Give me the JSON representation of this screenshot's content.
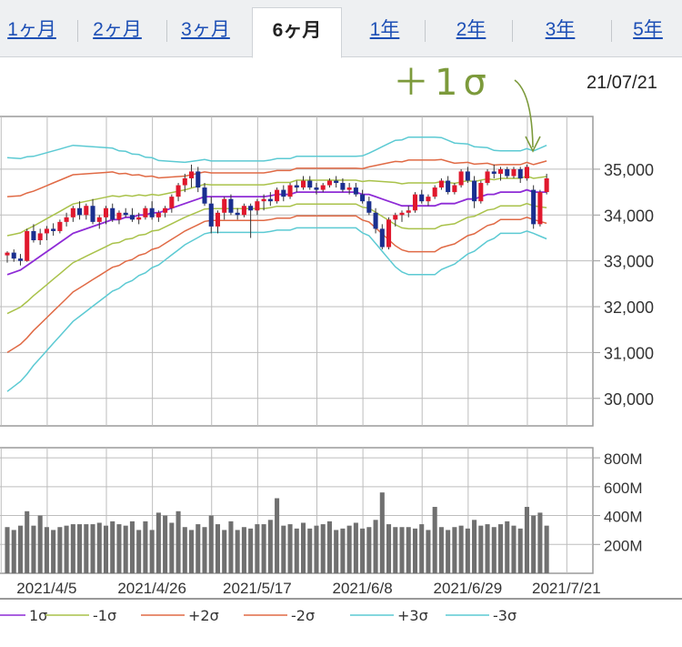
{
  "tabs": [
    {
      "label": "1ヶ月",
      "active": false
    },
    {
      "label": "2ヶ月",
      "active": false
    },
    {
      "label": "3ヶ月",
      "active": false
    },
    {
      "label": "6ヶ月",
      "active": true
    },
    {
      "label": "1年",
      "active": false
    },
    {
      "label": "2年",
      "active": false
    },
    {
      "label": "3年",
      "active": false
    },
    {
      "label": "5年",
      "active": false
    }
  ],
  "date_label": "21/07/21",
  "annotation": "＋1σ",
  "colors": {
    "up": "#e0182d",
    "down": "#1a2f8f",
    "mid": "#8e2bd6",
    "s1": "#a9c24a",
    "s2": "#e06a45",
    "s3": "#5ccad3",
    "volume": "#707070",
    "arrow": "#7c9a3b"
  },
  "chart_data": {
    "type": "candlestick",
    "price": {
      "y_ticks": [
        "35,000",
        "34,000",
        "33,000",
        "32,000",
        "31,000",
        "30,000"
      ],
      "y_tick_values": [
        35000,
        34000,
        33000,
        32000,
        31000,
        30000
      ],
      "ylim": [
        29400,
        36150
      ],
      "candles": [
        [
          33120,
          33210,
          32960,
          33180
        ],
        [
          33180,
          33250,
          32980,
          33050
        ],
        [
          33050,
          33150,
          32900,
          33000
        ],
        [
          33000,
          33700,
          32980,
          33650
        ],
        [
          33650,
          33800,
          33400,
          33450
        ],
        [
          33450,
          33700,
          33350,
          33600
        ],
        [
          33600,
          33760,
          33450,
          33700
        ],
        [
          33700,
          33820,
          33550,
          33650
        ],
        [
          33650,
          33900,
          33600,
          33850
        ],
        [
          33850,
          34050,
          33750,
          33950
        ],
        [
          33950,
          34200,
          33850,
          34150
        ],
        [
          34150,
          34300,
          33900,
          34000
        ],
        [
          34000,
          34250,
          33900,
          34200
        ],
        [
          34200,
          34350,
          33800,
          33850
        ],
        [
          33850,
          34000,
          33700,
          33950
        ],
        [
          33950,
          34200,
          33800,
          34150
        ],
        [
          34150,
          34250,
          33850,
          33900
        ],
        [
          33900,
          34100,
          33800,
          34050
        ],
        [
          34050,
          34150,
          33950,
          34000
        ],
        [
          34000,
          34150,
          33850,
          33900
        ],
        [
          33900,
          34050,
          33800,
          33950
        ],
        [
          33950,
          34200,
          33900,
          34150
        ],
        [
          34150,
          34300,
          33900,
          33950
        ],
        [
          33950,
          34100,
          33850,
          34050
        ],
        [
          34050,
          34200,
          33950,
          34150
        ],
        [
          34150,
          34450,
          34050,
          34400
        ],
        [
          34400,
          34700,
          34300,
          34650
        ],
        [
          34650,
          34900,
          34500,
          34800
        ],
        [
          34800,
          35100,
          34600,
          34950
        ],
        [
          34950,
          35050,
          34500,
          34600
        ],
        [
          34600,
          34700,
          34200,
          34250
        ],
        [
          34250,
          34400,
          33600,
          33750
        ],
        [
          33750,
          34100,
          33600,
          34050
        ],
        [
          34050,
          34400,
          33900,
          34350
        ],
        [
          34350,
          34450,
          34000,
          34050
        ],
        [
          34050,
          34150,
          33900,
          34000
        ],
        [
          34000,
          34250,
          33950,
          34200
        ],
        [
          34200,
          34250,
          33500,
          34100
        ],
        [
          34100,
          34350,
          34000,
          34300
        ],
        [
          34300,
          34450,
          34100,
          34350
        ],
        [
          34350,
          34500,
          34200,
          34300
        ],
        [
          34300,
          34600,
          34250,
          34550
        ],
        [
          34550,
          34650,
          34300,
          34400
        ],
        [
          34400,
          34700,
          34350,
          34650
        ],
        [
          34650,
          34750,
          34500,
          34600
        ],
        [
          34600,
          34850,
          34550,
          34750
        ],
        [
          34750,
          34850,
          34550,
          34600
        ],
        [
          34600,
          34700,
          34450,
          34550
        ],
        [
          34550,
          34700,
          34500,
          34650
        ],
        [
          34650,
          34800,
          34600,
          34750
        ],
        [
          34750,
          34850,
          34600,
          34700
        ],
        [
          34700,
          34800,
          34500,
          34550
        ],
        [
          34550,
          34700,
          34450,
          34600
        ],
        [
          34600,
          34700,
          34400,
          34450
        ],
        [
          34450,
          34550,
          34250,
          34300
        ],
        [
          34300,
          34400,
          34000,
          34050
        ],
        [
          34050,
          34150,
          33600,
          33700
        ],
        [
          33700,
          33800,
          33250,
          33300
        ],
        [
          33300,
          33950,
          33250,
          33900
        ],
        [
          33900,
          34050,
          33750,
          34000
        ],
        [
          34000,
          34100,
          33850,
          34050
        ],
        [
          34050,
          34200,
          33950,
          34100
        ],
        [
          34100,
          34500,
          34050,
          34450
        ],
        [
          34450,
          34550,
          34250,
          34300
        ],
        [
          34300,
          34450,
          34200,
          34400
        ],
        [
          34400,
          34650,
          34350,
          34600
        ],
        [
          34600,
          34800,
          34550,
          34750
        ],
        [
          34750,
          34850,
          34450,
          34500
        ],
        [
          34500,
          34700,
          34450,
          34650
        ],
        [
          34650,
          35000,
          34600,
          34950
        ],
        [
          34950,
          35050,
          34700,
          34750
        ],
        [
          34750,
          34850,
          34150,
          34300
        ],
        [
          34300,
          34750,
          34250,
          34700
        ],
        [
          34700,
          35000,
          34650,
          34950
        ],
        [
          34950,
          35100,
          34800,
          34900
        ],
        [
          34900,
          35050,
          34750,
          35000
        ],
        [
          35000,
          35050,
          34800,
          34850
        ],
        [
          34850,
          35050,
          34800,
          35000
        ],
        [
          35000,
          35050,
          34700,
          34800
        ],
        [
          34800,
          35100,
          34750,
          35050
        ],
        [
          34550,
          34650,
          33700,
          33800
        ],
        [
          33800,
          34550,
          33750,
          34500
        ],
        [
          34500,
          34900,
          34450,
          34800
        ]
      ],
      "bands": {
        "mid": [
          32700,
          32750,
          32800,
          32900,
          33000,
          33100,
          33200,
          33300,
          33400,
          33500,
          33600,
          33650,
          33700,
          33750,
          33800,
          33850,
          33900,
          33900,
          33950,
          33950,
          34000,
          34000,
          34050,
          34050,
          34100,
          34150,
          34200,
          34250,
          34300,
          34350,
          34400,
          34400,
          34400,
          34400,
          34400,
          34400,
          34400,
          34400,
          34400,
          34400,
          34420,
          34450,
          34450,
          34450,
          34500,
          34500,
          34500,
          34500,
          34500,
          34500,
          34500,
          34500,
          34500,
          34500,
          34450,
          34450,
          34400,
          34350,
          34300,
          34250,
          34200,
          34200,
          34200,
          34200,
          34200,
          34200,
          34250,
          34250,
          34250,
          34300,
          34350,
          34350,
          34400,
          34450,
          34450,
          34500,
          34500,
          34500,
          34500,
          34550,
          34500,
          34500,
          34500
        ],
        "w1": [
          850,
          830,
          810,
          790,
          760,
          740,
          720,
          700,
          680,
          660,
          640,
          620,
          600,
          580,
          560,
          540,
          520,
          500,
          480,
          460,
          440,
          420,
          400,
          380,
          360,
          340,
          320,
          300,
          290,
          280,
          270,
          260,
          260,
          260,
          260,
          260,
          260,
          260,
          260,
          260,
          260,
          260,
          260,
          260,
          260,
          260,
          260,
          260,
          260,
          260,
          260,
          260,
          260,
          260,
          280,
          300,
          340,
          380,
          420,
          460,
          480,
          500,
          500,
          500,
          500,
          500,
          480,
          460,
          440,
          420,
          400,
          380,
          360,
          340,
          320,
          300,
          300,
          300,
          300,
          300,
          300,
          320,
          340
        ]
      }
    },
    "volume": {
      "y_ticks": [
        "800M",
        "600M",
        "400M",
        "200M"
      ],
      "y_tick_values": [
        800,
        600,
        400,
        200
      ],
      "ylim": [
        0,
        870
      ],
      "values": [
        320,
        300,
        330,
        430,
        330,
        400,
        320,
        300,
        320,
        330,
        340,
        340,
        340,
        340,
        350,
        330,
        360,
        340,
        330,
        360,
        300,
        360,
        300,
        420,
        400,
        350,
        430,
        320,
        300,
        340,
        320,
        400,
        340,
        300,
        360,
        300,
        320,
        310,
        340,
        340,
        370,
        520,
        330,
        340,
        310,
        350,
        310,
        330,
        340,
        360,
        300,
        310,
        330,
        350,
        310,
        320,
        370,
        560,
        340,
        320,
        320,
        320,
        310,
        340,
        300,
        460,
        320,
        300,
        320,
        330,
        310,
        370,
        330,
        340,
        320,
        340,
        360,
        330,
        310,
        460,
        400,
        420,
        330
      ]
    },
    "x_labels": [
      "2021/4/5",
      "2021/4/26",
      "2021/5/17",
      "2021/6/8",
      "2021/6/29",
      "2021/7/21"
    ],
    "x_label_index": [
      9,
      25,
      41,
      57,
      73,
      88
    ],
    "first_index": -3,
    "legend": [
      {
        "label": "1σ",
        "color": "#8e2bd6"
      },
      {
        "label": "-1σ",
        "color": "#a9c24a"
      },
      {
        "label": "+2σ",
        "color": "#e06a45"
      },
      {
        "label": "-2σ",
        "color": "#e06a45"
      },
      {
        "label": "+3σ",
        "color": "#5ccad3"
      },
      {
        "label": "-3σ",
        "color": "#5ccad3"
      }
    ]
  }
}
